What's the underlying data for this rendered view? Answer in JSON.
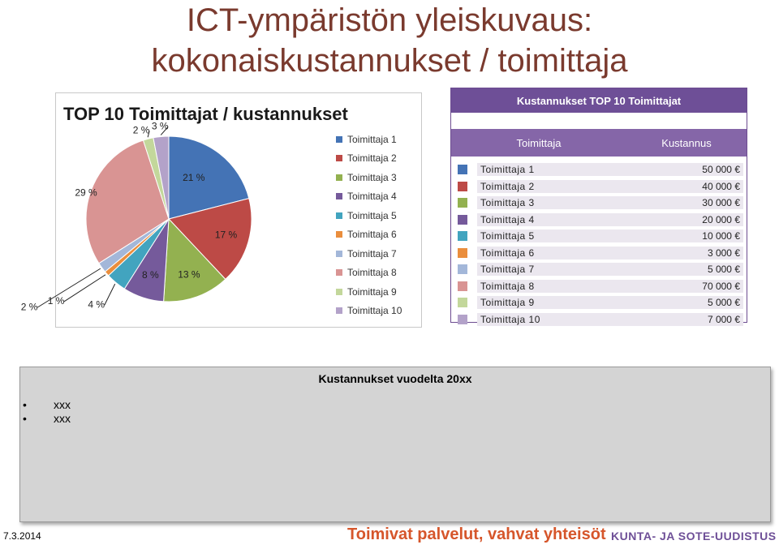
{
  "slide": {
    "title_line1": "ICT-ympäristön yleiskuvaus:",
    "title_line2": "kokonaiskustannukset / toimittaja"
  },
  "chart_data": {
    "type": "pie",
    "title": "TOP 10 Toimittajat / kustannukset",
    "categories": [
      "Toimittaja 1",
      "Toimittaja 2",
      "Toimittaja 3",
      "Toimittaja 4",
      "Toimittaja 5",
      "Toimittaja 6",
      "Toimittaja 7",
      "Toimittaja 8",
      "Toimittaja 9",
      "Toimittaja 10"
    ],
    "values": [
      21,
      17,
      13,
      8,
      4,
      1,
      2,
      29,
      2,
      3
    ],
    "data_labels": [
      "21 %",
      "17 %",
      "13 %",
      "8 %",
      "4 %",
      "1 %",
      "2 %",
      "29 %",
      "2 %",
      "3 %"
    ],
    "colors": [
      "#4473b5",
      "#bd4a46",
      "#93b150",
      "#755a9b",
      "#42a4bf",
      "#ea8e3d",
      "#a3b7d9",
      "#d99493",
      "#c3d79b",
      "#b3a2c9"
    ],
    "legend_position": "right"
  },
  "table": {
    "header": "Kustannukset TOP 10 Toimittajat",
    "col_supplier": "Toimittaja",
    "col_cost": "Kustannus",
    "rows": [
      {
        "name": "Toimittaja 1",
        "cost": "50 000 €"
      },
      {
        "name": "Toimittaja 2",
        "cost": "40 000 €"
      },
      {
        "name": "Toimittaja 3",
        "cost": "30 000 €"
      },
      {
        "name": "Toimittaja 4",
        "cost": "20 000 €"
      },
      {
        "name": "Toimittaja 5",
        "cost": "10 000 €"
      },
      {
        "name": "Toimittaja 6",
        "cost": "3 000 €"
      },
      {
        "name": "Toimittaja 7",
        "cost": "5 000 €"
      },
      {
        "name": "Toimittaja 8",
        "cost": "70 000 €"
      },
      {
        "name": "Toimittaja 9",
        "cost": "5 000 €"
      },
      {
        "name": "Toimittaja 10",
        "cost": "7 000 €"
      }
    ]
  },
  "notes": {
    "title": "Kustannukset vuodelta 20xx",
    "items": [
      "xxx",
      "xxx"
    ]
  },
  "footer": {
    "date": "7.3.2014",
    "slogan": "Toimivat palvelut, vahvat yhteisöt",
    "brand": "KUNTA- JA SOTE-UUDISTUS"
  }
}
